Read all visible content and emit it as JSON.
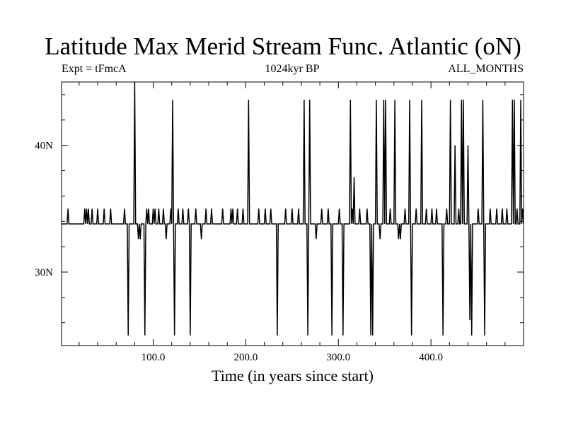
{
  "chart_data": {
    "type": "line",
    "title": "Latitude Max Merid Stream Func. Atlantic (oN)",
    "subtitle_left": "Expt = tFmcA",
    "subtitle_center": "1024kyr BP",
    "subtitle_right": "ALL_MONTHS",
    "xlabel": "Time (in years since start)",
    "ylabel": "",
    "xlim": [
      1,
      500
    ],
    "ylim": [
      24.2,
      45
    ],
    "x_ticks": [
      100,
      200,
      300,
      400
    ],
    "x_tick_labels": [
      "100.0",
      "200.0",
      "300.0",
      "400.0"
    ],
    "y_ticks": [
      30,
      40
    ],
    "y_tick_labels": [
      "30N",
      "40N"
    ],
    "baseline": 33.8,
    "grid": false,
    "series": [
      {
        "name": "",
        "color": "#000000",
        "points": [
          [
            1,
            33.8
          ],
          [
            7,
            33.8
          ],
          [
            8,
            35.0
          ],
          [
            9,
            33.8
          ],
          [
            25,
            33.8
          ],
          [
            26,
            35.0
          ],
          [
            27,
            33.8
          ],
          [
            28,
            35.0
          ],
          [
            29,
            33.8
          ],
          [
            30,
            35.0
          ],
          [
            31,
            33.8
          ],
          [
            33,
            33.8
          ],
          [
            34,
            35.0
          ],
          [
            35,
            33.8
          ],
          [
            39,
            33.8
          ],
          [
            40,
            35.0
          ],
          [
            41,
            33.8
          ],
          [
            46,
            33.8
          ],
          [
            47,
            35.0
          ],
          [
            48,
            33.8
          ],
          [
            53,
            33.8
          ],
          [
            54,
            35.0
          ],
          [
            55,
            33.8
          ],
          [
            68,
            33.8
          ],
          [
            69,
            35.0
          ],
          [
            70,
            33.8
          ],
          [
            72,
            33.8
          ],
          [
            73,
            25.0
          ],
          [
            74,
            33.8
          ],
          [
            79,
            33.8
          ],
          [
            80,
            45.0
          ],
          [
            81,
            33.8
          ],
          [
            83,
            33.8
          ],
          [
            84,
            32.6
          ],
          [
            85,
            33.8
          ],
          [
            86,
            32.6
          ],
          [
            87,
            33.8
          ],
          [
            90,
            33.8
          ],
          [
            91,
            25.0
          ],
          [
            92,
            33.8
          ],
          [
            93,
            35.0
          ],
          [
            94,
            33.8
          ],
          [
            95,
            35.0
          ],
          [
            96,
            33.8
          ],
          [
            99,
            33.8
          ],
          [
            100,
            35.0
          ],
          [
            101,
            33.8
          ],
          [
            102,
            35.0
          ],
          [
            103,
            33.8
          ],
          [
            105,
            33.8
          ],
          [
            106,
            35.0
          ],
          [
            107,
            33.8
          ],
          [
            110,
            33.8
          ],
          [
            111,
            35.0
          ],
          [
            112,
            33.8
          ],
          [
            113,
            33.8
          ],
          [
            114,
            32.6
          ],
          [
            115,
            33.8
          ],
          [
            118,
            33.8
          ],
          [
            119,
            35.0
          ],
          [
            120,
            33.8
          ],
          [
            121,
            43.6
          ],
          [
            122,
            33.8
          ],
          [
            123,
            25.0
          ],
          [
            124,
            33.8
          ],
          [
            126,
            33.8
          ],
          [
            127,
            35.0
          ],
          [
            128,
            33.8
          ],
          [
            131,
            33.8
          ],
          [
            132,
            35.0
          ],
          [
            133,
            33.8
          ],
          [
            137,
            33.8
          ],
          [
            138,
            35.0
          ],
          [
            139,
            33.8
          ],
          [
            140,
            25.0
          ],
          [
            141,
            33.8
          ],
          [
            145,
            33.8
          ],
          [
            146,
            35.0
          ],
          [
            147,
            33.8
          ],
          [
            151,
            33.8
          ],
          [
            152,
            32.6
          ],
          [
            153,
            33.8
          ],
          [
            156,
            33.8
          ],
          [
            157,
            35.0
          ],
          [
            158,
            33.8
          ],
          [
            162,
            33.8
          ],
          [
            163,
            35.0
          ],
          [
            164,
            33.8
          ],
          [
            174,
            33.8
          ],
          [
            175,
            35.0
          ],
          [
            176,
            33.8
          ],
          [
            183,
            33.8
          ],
          [
            184,
            35.0
          ],
          [
            185,
            33.8
          ],
          [
            186,
            35.0
          ],
          [
            187,
            33.8
          ],
          [
            190,
            33.8
          ],
          [
            191,
            35.0
          ],
          [
            192,
            33.8
          ],
          [
            196,
            33.8
          ],
          [
            197,
            35.0
          ],
          [
            198,
            33.8
          ],
          [
            202,
            33.8
          ],
          [
            203,
            43.6
          ],
          [
            204,
            33.8
          ],
          [
            213,
            33.8
          ],
          [
            214,
            35.0
          ],
          [
            215,
            33.8
          ],
          [
            220,
            33.8
          ],
          [
            221,
            35.0
          ],
          [
            222,
            33.8
          ],
          [
            226,
            33.8
          ],
          [
            227,
            35.0
          ],
          [
            228,
            33.8
          ],
          [
            233,
            33.8
          ],
          [
            234,
            25.0
          ],
          [
            235,
            33.8
          ],
          [
            242,
            33.8
          ],
          [
            243,
            35.0
          ],
          [
            244,
            33.8
          ],
          [
            249,
            33.8
          ],
          [
            250,
            35.0
          ],
          [
            251,
            33.8
          ],
          [
            256,
            33.8
          ],
          [
            257,
            35.0
          ],
          [
            258,
            33.8
          ],
          [
            262,
            33.8
          ],
          [
            263,
            43.6
          ],
          [
            264,
            33.8
          ],
          [
            266,
            33.8
          ],
          [
            267,
            25.0
          ],
          [
            268,
            33.8
          ],
          [
            269,
            43.6
          ],
          [
            270,
            33.8
          ],
          [
            275,
            33.8
          ],
          [
            276,
            32.6
          ],
          [
            277,
            33.8
          ],
          [
            281,
            33.8
          ],
          [
            282,
            35.0
          ],
          [
            283,
            33.8
          ],
          [
            288,
            33.8
          ],
          [
            289,
            35.0
          ],
          [
            290,
            33.8
          ],
          [
            292,
            33.8
          ],
          [
            293,
            25.0
          ],
          [
            294,
            33.8
          ],
          [
            300,
            33.8
          ],
          [
            301,
            35.0
          ],
          [
            302,
            33.8
          ],
          [
            304,
            33.8
          ],
          [
            305,
            25.0
          ],
          [
            306,
            33.8
          ],
          [
            312,
            33.8
          ],
          [
            313,
            43.6
          ],
          [
            314,
            33.8
          ],
          [
            315,
            35.0
          ],
          [
            316,
            33.8
          ],
          [
            317,
            37.5
          ],
          [
            318,
            33.8
          ],
          [
            322,
            33.8
          ],
          [
            323,
            35.0
          ],
          [
            324,
            33.8
          ],
          [
            330,
            33.8
          ],
          [
            331,
            35.0
          ],
          [
            332,
            33.8
          ],
          [
            334,
            33.8
          ],
          [
            335,
            25.0
          ],
          [
            336,
            33.8
          ],
          [
            337,
            25.0
          ],
          [
            338,
            33.8
          ],
          [
            340,
            33.8
          ],
          [
            341,
            43.6
          ],
          [
            342,
            33.8
          ],
          [
            344,
            33.8
          ],
          [
            345,
            32.6
          ],
          [
            346,
            33.8
          ],
          [
            348,
            33.8
          ],
          [
            349,
            43.6
          ],
          [
            350,
            33.8
          ],
          [
            351,
            43.6
          ],
          [
            352,
            33.8
          ],
          [
            355,
            33.8
          ],
          [
            356,
            35.0
          ],
          [
            357,
            33.8
          ],
          [
            360,
            33.8
          ],
          [
            361,
            43.6
          ],
          [
            362,
            33.8
          ],
          [
            364,
            33.8
          ],
          [
            365,
            32.6
          ],
          [
            366,
            33.8
          ],
          [
            367,
            32.6
          ],
          [
            368,
            33.8
          ],
          [
            371,
            33.8
          ],
          [
            372,
            35.0
          ],
          [
            373,
            33.8
          ],
          [
            376,
            33.8
          ],
          [
            377,
            43.6
          ],
          [
            378,
            33.8
          ],
          [
            379,
            25.0
          ],
          [
            380,
            33.8
          ],
          [
            383,
            33.8
          ],
          [
            384,
            35.0
          ],
          [
            385,
            33.8
          ],
          [
            389,
            33.8
          ],
          [
            390,
            43.6
          ],
          [
            391,
            33.8
          ],
          [
            394,
            33.8
          ],
          [
            395,
            35.0
          ],
          [
            396,
            33.8
          ],
          [
            400,
            33.8
          ],
          [
            401,
            35.0
          ],
          [
            402,
            33.8
          ],
          [
            405,
            33.8
          ],
          [
            406,
            35.0
          ],
          [
            407,
            33.8
          ],
          [
            412,
            33.8
          ],
          [
            413,
            25.0
          ],
          [
            414,
            33.8
          ],
          [
            416,
            33.8
          ],
          [
            417,
            35.0
          ],
          [
            418,
            33.8
          ],
          [
            420,
            33.8
          ],
          [
            421,
            43.6
          ],
          [
            422,
            33.8
          ],
          [
            425,
            33.8
          ],
          [
            426,
            40.0
          ],
          [
            427,
            33.8
          ],
          [
            429,
            33.8
          ],
          [
            430,
            35.0
          ],
          [
            431,
            33.8
          ],
          [
            432,
            33.8
          ],
          [
            433,
            43.6
          ],
          [
            434,
            33.8
          ],
          [
            435,
            43.6
          ],
          [
            436,
            33.8
          ],
          [
            439,
            33.8
          ],
          [
            440,
            40.0
          ],
          [
            441,
            33.8
          ],
          [
            442,
            26.2
          ],
          [
            443,
            33.8
          ],
          [
            444,
            25.0
          ],
          [
            445,
            33.8
          ],
          [
            450,
            33.8
          ],
          [
            451,
            35.0
          ],
          [
            452,
            33.8
          ],
          [
            455,
            33.8
          ],
          [
            456,
            43.6
          ],
          [
            457,
            33.8
          ],
          [
            458,
            25.0
          ],
          [
            459,
            33.8
          ],
          [
            463,
            33.8
          ],
          [
            464,
            35.0
          ],
          [
            465,
            33.8
          ],
          [
            470,
            33.8
          ],
          [
            471,
            35.0
          ],
          [
            472,
            33.8
          ],
          [
            476,
            33.8
          ],
          [
            477,
            35.0
          ],
          [
            478,
            33.8
          ],
          [
            481,
            33.8
          ],
          [
            482,
            35.0
          ],
          [
            483,
            33.8
          ],
          [
            487,
            33.8
          ],
          [
            488,
            43.6
          ],
          [
            489,
            33.8
          ],
          [
            490,
            43.6
          ],
          [
            491,
            33.8
          ],
          [
            492,
            33.8
          ],
          [
            493,
            35.0
          ],
          [
            494,
            33.8
          ],
          [
            496,
            33.8
          ],
          [
            497,
            43.6
          ],
          [
            498,
            33.8
          ],
          [
            499,
            35.0
          ],
          [
            500,
            33.8
          ]
        ]
      }
    ]
  }
}
